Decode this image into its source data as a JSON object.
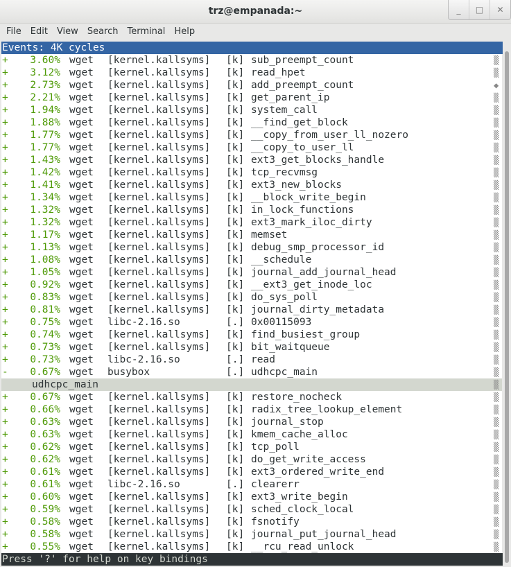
{
  "window": {
    "title": "trz@empanada:~",
    "controls": [
      "minimize",
      "maximize",
      "close"
    ]
  },
  "menu": [
    "File",
    "Edit",
    "View",
    "Search",
    "Terminal",
    "Help"
  ],
  "header": "Events: 4K cycles",
  "rows": [
    [
      "+",
      "3.60%",
      "wget",
      "[kernel.kallsyms]",
      "[k]",
      "sub_preempt_count"
    ],
    [
      "+",
      "3.12%",
      "wget",
      "[kernel.kallsyms]",
      "[k]",
      "read_hpet"
    ],
    [
      "+",
      "2.73%",
      "wget",
      "[kernel.kallsyms]",
      "[k]",
      "add_preempt_count"
    ],
    [
      "+",
      "2.21%",
      "wget",
      "[kernel.kallsyms]",
      "[k]",
      "get_parent_ip"
    ],
    [
      "+",
      "1.94%",
      "wget",
      "[kernel.kallsyms]",
      "[k]",
      "system_call"
    ],
    [
      "+",
      "1.88%",
      "wget",
      "[kernel.kallsyms]",
      "[k]",
      "__find_get_block"
    ],
    [
      "+",
      "1.77%",
      "wget",
      "[kernel.kallsyms]",
      "[k]",
      "__copy_from_user_ll_nozero"
    ],
    [
      "+",
      "1.77%",
      "wget",
      "[kernel.kallsyms]",
      "[k]",
      "__copy_to_user_ll"
    ],
    [
      "+",
      "1.43%",
      "wget",
      "[kernel.kallsyms]",
      "[k]",
      "ext3_get_blocks_handle"
    ],
    [
      "+",
      "1.42%",
      "wget",
      "[kernel.kallsyms]",
      "[k]",
      "tcp_recvmsg"
    ],
    [
      "+",
      "1.41%",
      "wget",
      "[kernel.kallsyms]",
      "[k]",
      "ext3_new_blocks"
    ],
    [
      "+",
      "1.34%",
      "wget",
      "[kernel.kallsyms]",
      "[k]",
      "__block_write_begin"
    ],
    [
      "+",
      "1.32%",
      "wget",
      "[kernel.kallsyms]",
      "[k]",
      "in_lock_functions"
    ],
    [
      "+",
      "1.32%",
      "wget",
      "[kernel.kallsyms]",
      "[k]",
      "ext3_mark_iloc_dirty"
    ],
    [
      "+",
      "1.17%",
      "wget",
      "[kernel.kallsyms]",
      "[k]",
      "memset"
    ],
    [
      "+",
      "1.13%",
      "wget",
      "[kernel.kallsyms]",
      "[k]",
      "debug_smp_processor_id"
    ],
    [
      "+",
      "1.08%",
      "wget",
      "[kernel.kallsyms]",
      "[k]",
      "__schedule"
    ],
    [
      "+",
      "1.05%",
      "wget",
      "[kernel.kallsyms]",
      "[k]",
      "journal_add_journal_head"
    ],
    [
      "+",
      "0.92%",
      "wget",
      "[kernel.kallsyms]",
      "[k]",
      "__ext3_get_inode_loc"
    ],
    [
      "+",
      "0.83%",
      "wget",
      "[kernel.kallsyms]",
      "[k]",
      "do_sys_poll"
    ],
    [
      "+",
      "0.81%",
      "wget",
      "[kernel.kallsyms]",
      "[k]",
      "journal_dirty_metadata"
    ],
    [
      "+",
      "0.75%",
      "wget",
      "libc-2.16.so",
      "[.]",
      "0x00115093"
    ],
    [
      "+",
      "0.74%",
      "wget",
      "[kernel.kallsyms]",
      "[k]",
      "find_busiest_group"
    ],
    [
      "+",
      "0.73%",
      "wget",
      "[kernel.kallsyms]",
      "[k]",
      "bit_waitqueue"
    ],
    [
      "+",
      "0.73%",
      "wget",
      "libc-2.16.so",
      "[.]",
      "read"
    ],
    [
      "-",
      "0.67%",
      "wget",
      "busybox",
      "[.]",
      "udhcpc_main"
    ],
    [
      "callchain",
      "udhcpc_main"
    ],
    [
      "+",
      "0.67%",
      "wget",
      "[kernel.kallsyms]",
      "[k]",
      "restore_nocheck"
    ],
    [
      "+",
      "0.66%",
      "wget",
      "[kernel.kallsyms]",
      "[k]",
      "radix_tree_lookup_element"
    ],
    [
      "+",
      "0.63%",
      "wget",
      "[kernel.kallsyms]",
      "[k]",
      "journal_stop"
    ],
    [
      "+",
      "0.63%",
      "wget",
      "[kernel.kallsyms]",
      "[k]",
      "kmem_cache_alloc"
    ],
    [
      "+",
      "0.62%",
      "wget",
      "[kernel.kallsyms]",
      "[k]",
      "tcp_poll"
    ],
    [
      "+",
      "0.62%",
      "wget",
      "[kernel.kallsyms]",
      "[k]",
      "do_get_write_access"
    ],
    [
      "+",
      "0.61%",
      "wget",
      "[kernel.kallsyms]",
      "[k]",
      "ext3_ordered_write_end"
    ],
    [
      "+",
      "0.61%",
      "wget",
      "libc-2.16.so",
      "[.]",
      "clearerr"
    ],
    [
      "+",
      "0.60%",
      "wget",
      "[kernel.kallsyms]",
      "[k]",
      "ext3_write_begin"
    ],
    [
      "+",
      "0.59%",
      "wget",
      "[kernel.kallsyms]",
      "[k]",
      "sched_clock_local"
    ],
    [
      "+",
      "0.58%",
      "wget",
      "[kernel.kallsyms]",
      "[k]",
      "fsnotify"
    ],
    [
      "+",
      "0.58%",
      "wget",
      "[kernel.kallsyms]",
      "[k]",
      "journal_put_journal_head"
    ],
    [
      "+",
      "0.55%",
      "wget",
      "[kernel.kallsyms]",
      "[k]",
      "__rcu_read_unlock"
    ]
  ],
  "status": "Press '?' for help on key bindings",
  "colors": {
    "header_bg": "#3465a4",
    "percent": "#4e9a06",
    "selected_bg": "#d3d7cf",
    "status_bg": "#2e3436"
  }
}
